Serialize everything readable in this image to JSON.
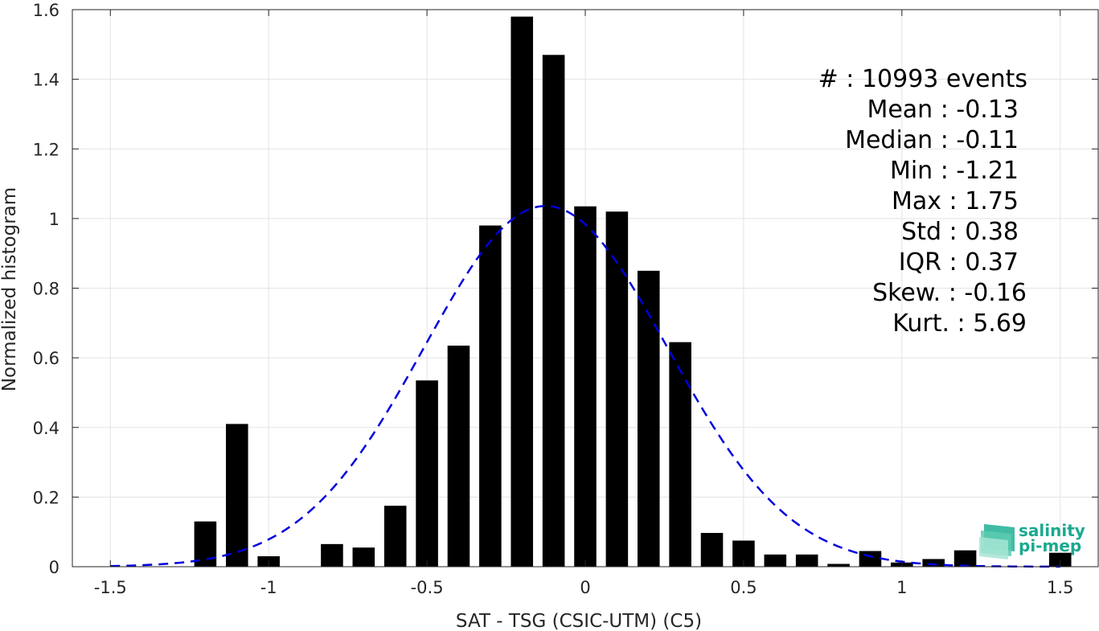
{
  "chart_data": {
    "type": "bar",
    "xlabel": "SAT - TSG (CSIC-UTM) (C5)",
    "ylabel": "Normalized histogram",
    "xlim": [
      -1.62,
      1.62
    ],
    "ylim": [
      0,
      1.6
    ],
    "xticks": [
      -1.5,
      -1,
      -0.5,
      0,
      0.5,
      1,
      1.5
    ],
    "xtick_labels": [
      "-1.5",
      "-1",
      "-0.5",
      "0",
      "0.5",
      "1",
      "1.5"
    ],
    "yticks": [
      0,
      0.2,
      0.4,
      0.6,
      0.8,
      1,
      1.2,
      1.4,
      1.6
    ],
    "ytick_labels": [
      "0",
      "0.2",
      "0.4",
      "0.6",
      "0.8",
      "1",
      "1.2",
      "1.4",
      "1.6"
    ],
    "grid": true,
    "bar_width": 0.07,
    "bar_color": "#000000",
    "bars": [
      {
        "x": -1.2,
        "y": 0.13
      },
      {
        "x": -1.1,
        "y": 0.41
      },
      {
        "x": -1.0,
        "y": 0.03
      },
      {
        "x": -0.8,
        "y": 0.065
      },
      {
        "x": -0.7,
        "y": 0.055
      },
      {
        "x": -0.6,
        "y": 0.175
      },
      {
        "x": -0.5,
        "y": 0.535
      },
      {
        "x": -0.4,
        "y": 0.635
      },
      {
        "x": -0.3,
        "y": 0.98
      },
      {
        "x": -0.2,
        "y": 1.58
      },
      {
        "x": -0.1,
        "y": 1.47
      },
      {
        "x": 0.0,
        "y": 1.035
      },
      {
        "x": 0.1,
        "y": 1.02
      },
      {
        "x": 0.2,
        "y": 0.85
      },
      {
        "x": 0.3,
        "y": 0.645
      },
      {
        "x": 0.4,
        "y": 0.097
      },
      {
        "x": 0.5,
        "y": 0.075
      },
      {
        "x": 0.6,
        "y": 0.035
      },
      {
        "x": 0.7,
        "y": 0.035
      },
      {
        "x": 0.8,
        "y": 0.008
      },
      {
        "x": 0.9,
        "y": 0.045
      },
      {
        "x": 1.0,
        "y": 0.012
      },
      {
        "x": 1.1,
        "y": 0.022
      },
      {
        "x": 1.2,
        "y": 0.047
      },
      {
        "x": 1.5,
        "y": 0.04
      }
    ],
    "fit_curve": {
      "style": "dashed",
      "color": "#0000dd",
      "mean": -0.125,
      "std": 0.385,
      "x_range": [
        -1.5,
        1.5
      ]
    },
    "stats": {
      "count_line": "#  : 10993 events",
      "mean_line": "Mean : -0.13",
      "median_line": "Median : -0.11",
      "min_line": "Min : -1.21",
      "max_line": "Max : 1.75",
      "std_line": "Std : 0.38",
      "iqr_line": "IQR : 0.37",
      "skew_line": "Skew. : -0.16",
      "kurt_line": "Kurt. : 5.69"
    }
  },
  "logo": {
    "line1": "salinity",
    "line2": "pi-mep",
    "color": "#1aa98f"
  }
}
